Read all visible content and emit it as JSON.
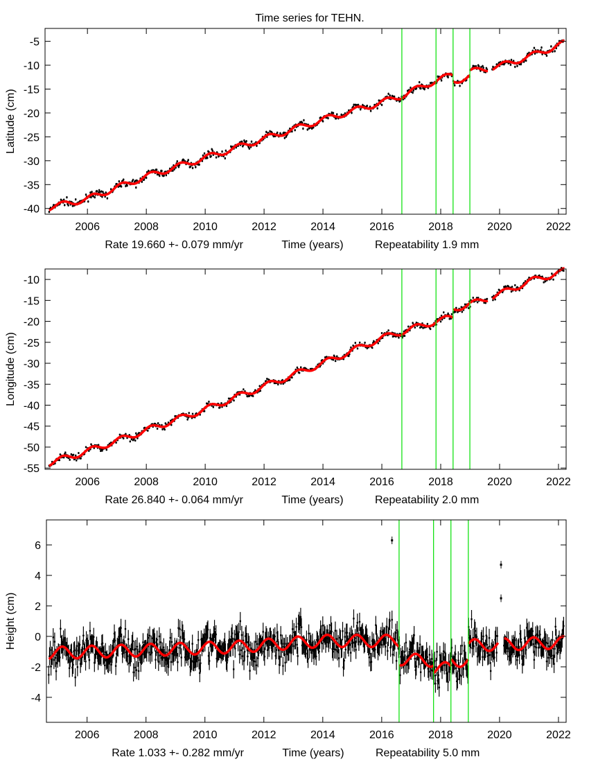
{
  "chart_data": [
    {
      "type": "scatter",
      "title": "Time series for TEHN.",
      "ylabel": "Latitude (cm)",
      "xlabel": "Time (years)",
      "rate_text": "Rate 19.660 +- 0.079 mm/yr",
      "repeat_text": "Repeatability 1.9 mm",
      "xlim": [
        2004.56,
        2022.26
      ],
      "ylim": [
        -41.2,
        -2.3
      ],
      "xticks": [
        2006,
        2008,
        2010,
        2012,
        2014,
        2016,
        2018,
        2020,
        2022
      ],
      "yticks": [
        -5,
        -10,
        -15,
        -20,
        -25,
        -30,
        -35,
        -40
      ],
      "breaks": [
        2016.68,
        2017.84,
        2018.42,
        2018.99
      ],
      "model": [
        [
          2004.7,
          -39.8
        ],
        [
          2006,
          -38.0
        ],
        [
          2008,
          -33.3
        ],
        [
          2010,
          -29.4
        ],
        [
          2012,
          -25.4
        ],
        [
          2014,
          -21.4
        ],
        [
          2016,
          -17.8
        ],
        [
          2016.68,
          -16.4
        ],
        [
          2017.84,
          -13.2
        ],
        [
          2018.42,
          -12.0
        ],
        [
          2018.42,
          -13.4
        ],
        [
          2018.99,
          -12.4
        ],
        [
          2018.99,
          -11.4
        ],
        [
          2020,
          -10.2
        ],
        [
          2021,
          -8.2
        ],
        [
          2022.2,
          -5.4
        ]
      ],
      "seasonal_amp": 0.6,
      "noise": 0.35,
      "gaps": [
        [
          2019.6,
          2019.75
        ]
      ]
    },
    {
      "type": "scatter",
      "ylabel": "Longitude (cm)",
      "xlabel": "Time (years)",
      "rate_text": "Rate 26.840 +- 0.064 mm/yr",
      "repeat_text": "Repeatability 2.0 mm",
      "xlim": [
        2004.56,
        2022.26
      ],
      "ylim": [
        -55.3,
        -7.5
      ],
      "xticks": [
        2006,
        2008,
        2010,
        2012,
        2014,
        2016,
        2018,
        2020,
        2022
      ],
      "yticks": [
        -10,
        -15,
        -20,
        -25,
        -30,
        -35,
        -40,
        -45,
        -50,
        -55
      ],
      "breaks": [
        2016.68,
        2017.84,
        2018.42,
        2018.99
      ],
      "model": [
        [
          2004.7,
          -53.8
        ],
        [
          2006,
          -51.0
        ],
        [
          2008,
          -46.0
        ],
        [
          2010,
          -41.0
        ],
        [
          2012,
          -35.5
        ],
        [
          2014,
          -30.0
        ],
        [
          2016,
          -24.0
        ],
        [
          2016.68,
          -22.5
        ],
        [
          2017.84,
          -20.0
        ],
        [
          2018.42,
          -19.0
        ],
        [
          2018.42,
          -17.0
        ],
        [
          2018.99,
          -16.0
        ],
        [
          2020,
          -13.5
        ],
        [
          2021,
          -10.5
        ],
        [
          2022.2,
          -8.0
        ]
      ],
      "seasonal_amp": 0.7,
      "noise": 0.4,
      "gaps": [
        [
          2019.6,
          2019.75
        ]
      ]
    },
    {
      "type": "scatter",
      "ylabel": "Height (cm)",
      "xlabel": "Time (years)",
      "rate_text": "Rate 1.033 +- 0.282 mm/yr",
      "repeat_text": "Repeatability 5.0 mm",
      "xlim": [
        2004.62,
        2022.26
      ],
      "ylim": [
        -5.64,
        7.64
      ],
      "xticks": [
        2006,
        2008,
        2010,
        2012,
        2014,
        2016,
        2018,
        2020,
        2022
      ],
      "yticks": [
        -4,
        -2,
        0,
        2,
        4,
        6
      ],
      "breaks": [
        2016.59,
        2017.76,
        2018.35,
        2018.94
      ],
      "model": [
        [
          2004.7,
          -1.1
        ],
        [
          2008,
          -0.9
        ],
        [
          2011,
          -0.7
        ],
        [
          2014,
          -0.3
        ],
        [
          2016.59,
          -0.3
        ],
        [
          2016.59,
          -1.5
        ],
        [
          2017.76,
          -1.6
        ],
        [
          2017.76,
          -2.1
        ],
        [
          2018.35,
          -2.1
        ],
        [
          2018.35,
          -1.6
        ],
        [
          2018.94,
          -1.6
        ],
        [
          2018.94,
          -0.6
        ],
        [
          2022.2,
          -0.4
        ]
      ],
      "seasonal_amp": 0.4,
      "noise": 0.6,
      "gaps": [
        [
          2019.95,
          2020.15
        ]
      ],
      "outliers": [
        [
          2016.35,
          6.3
        ],
        [
          2020.05,
          4.7
        ],
        [
          2020.05,
          2.5
        ]
      ]
    }
  ]
}
